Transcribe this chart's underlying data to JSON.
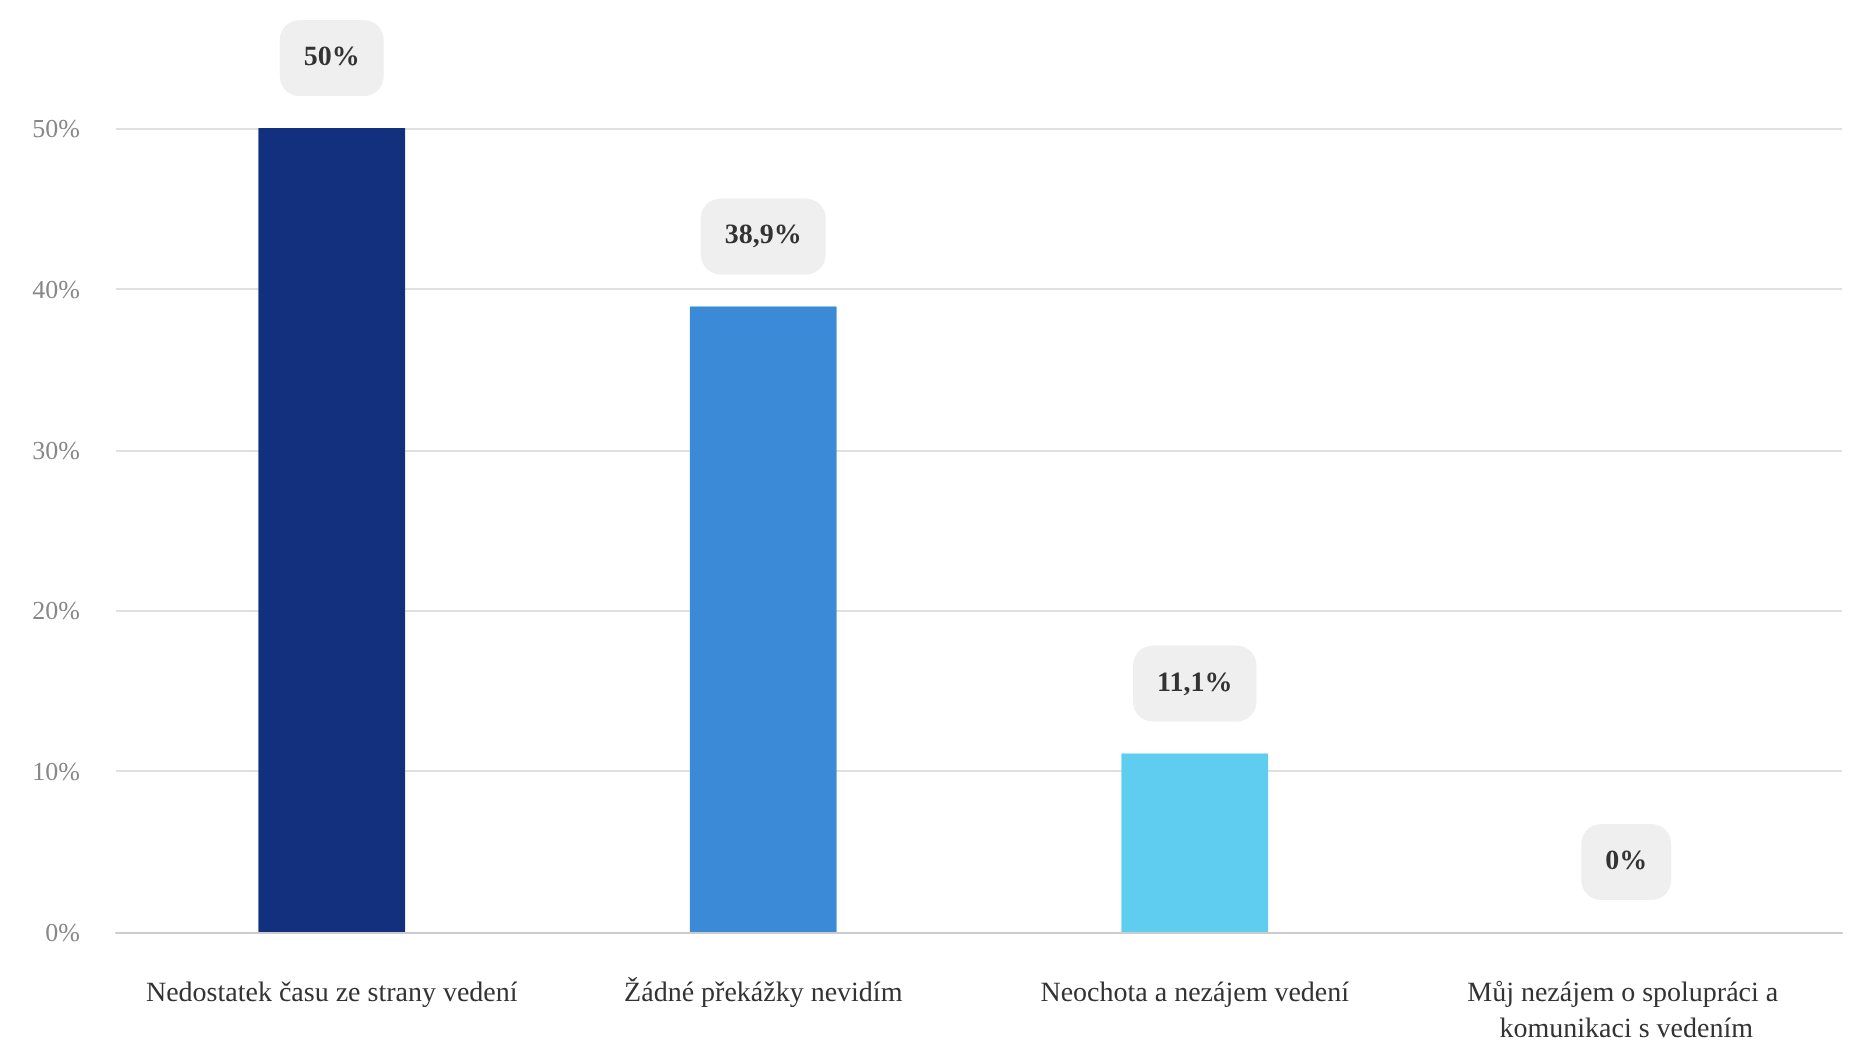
{
  "chart_data": {
    "type": "bar",
    "categories": [
      "Nedostatek času ze strany vedení",
      "Žádné překážky nevidím",
      "Neochota a nezájem vedení",
      "Můj nezájem o spolupráci a komunikaci s vedením"
    ],
    "values": [
      50,
      38.9,
      11.1,
      0
    ],
    "colors": [
      "#13307f",
      "#3a8ad8",
      "#5fcdef",
      "#5fcdef"
    ],
    "value_labels": [
      "50%",
      "38,9%",
      "11,1%",
      "0%"
    ],
    "ylim": [
      0,
      50
    ],
    "yticks": [
      {
        "value": 0,
        "label": "0%"
      },
      {
        "value": 10,
        "label": "10%"
      },
      {
        "value": 20,
        "label": "20%"
      },
      {
        "value": 30,
        "label": "30%"
      },
      {
        "value": 40,
        "label": "40%"
      },
      {
        "value": 50,
        "label": "50%"
      }
    ],
    "grid": "y"
  }
}
